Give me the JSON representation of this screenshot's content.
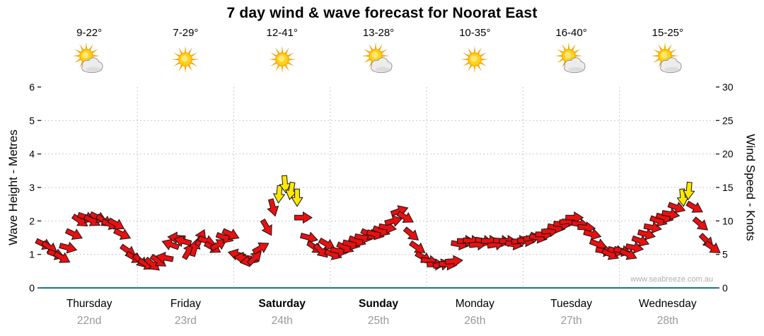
{
  "title": "7 day wind & wave forecast for Noorat East",
  "watermark": "www.seabreeze.com.au",
  "chart_data": {
    "type": "scatter",
    "subtype": "wind-arrow-forecast",
    "title": "7 day wind & wave forecast for Noorat East",
    "ylabel_left": "Wave Height - Metres",
    "ylabel_right": "Wind Speed - Knots",
    "ylim_left": [
      0,
      6
    ],
    "yticks_left": [
      0,
      1,
      2,
      3,
      4,
      5,
      6
    ],
    "ylim_right": [
      0,
      30
    ],
    "yticks_right": [
      0,
      5,
      10,
      15,
      20,
      25,
      30
    ],
    "grid": true,
    "legend": "none",
    "arrow_color": "#e81010",
    "strong_arrow_color": "#ffe800",
    "strong_threshold_knots": 13,
    "axis_line_color": "#0e7c7c",
    "grid_color": "#c9c9c9",
    "days": [
      {
        "name": "Thursday",
        "date": "22nd",
        "temps": "9-22°",
        "icon": "sun-cloud",
        "weekend": false,
        "wind_knots": [
          6.5,
          6,
          5,
          4.5,
          6,
          8,
          10,
          10.5,
          10,
          10.5,
          10,
          9.5,
          9.5,
          8,
          5.5,
          4.5
        ],
        "wind_dir_deg": [
          25,
          35,
          20,
          30,
          15,
          25,
          35,
          20,
          30,
          25,
          35,
          20,
          30,
          25,
          35,
          30
        ]
      },
      {
        "name": "Friday",
        "date": "23rd",
        "temps": "7-29°",
        "icon": "sun",
        "weekend": false,
        "wind_knots": [
          4,
          3.5,
          3.5,
          4,
          4.5,
          6.5,
          7.5,
          7,
          5.5,
          6,
          7.5,
          7,
          6,
          6.5,
          7.5,
          8
        ],
        "wind_dir_deg": [
          45,
          30,
          40,
          35,
          190,
          200,
          185,
          195,
          -60,
          -75,
          -65,
          20,
          30,
          -30,
          20,
          25
        ]
      },
      {
        "name": "Saturday",
        "date": "24th",
        "temps": "12-41°",
        "icon": "sun",
        "weekend": true,
        "wind_knots": [
          5,
          4.5,
          4,
          4.5,
          6,
          9,
          12,
          14,
          15.5,
          14.5,
          13.5,
          10.5,
          7.5,
          6,
          5.5,
          6.5
        ],
        "wind_dir_deg": [
          195,
          185,
          170,
          -45,
          -30,
          60,
          75,
          95,
          85,
          100,
          90,
          0,
          15,
          35,
          45,
          30
        ]
      },
      {
        "name": "Sunday",
        "date": "25th",
        "temps": "13-28°",
        "icon": "sun-cloud",
        "weekend": true,
        "wind_knots": [
          5,
          5.5,
          6,
          6.5,
          7,
          7.5,
          8,
          8,
          8.5,
          9,
          10,
          11.5,
          10.5,
          8,
          6,
          4.5
        ],
        "wind_dir_deg": [
          20,
          10,
          25,
          15,
          20,
          10,
          25,
          15,
          20,
          10,
          -15,
          -20,
          30,
          40,
          35,
          30
        ]
      },
      {
        "name": "Monday",
        "date": "26th",
        "temps": "10-35°",
        "icon": "sun",
        "weekend": false,
        "wind_knots": [
          4,
          3.5,
          3.5,
          3.5,
          4,
          6.5,
          7,
          7,
          6.5,
          7,
          7,
          6.5,
          7,
          7,
          6.5,
          7
        ],
        "wind_dir_deg": [
          10,
          0,
          -10,
          5,
          -5,
          10,
          0,
          5,
          -5,
          10,
          0,
          -10,
          5,
          0,
          10,
          -5
        ]
      },
      {
        "name": "Tuesday",
        "date": "27th",
        "temps": "16-40°",
        "icon": "sun-cloud",
        "weekend": false,
        "wind_knots": [
          7,
          7.5,
          7.5,
          8,
          8.5,
          9,
          9.5,
          10,
          10.5,
          9.5,
          9,
          8,
          6.5,
          5.5,
          5,
          5.5
        ],
        "wind_dir_deg": [
          5,
          -10,
          10,
          0,
          -5,
          10,
          5,
          -10,
          0,
          10,
          5,
          15,
          20,
          10,
          25,
          15
        ]
      },
      {
        "name": "Wednesday",
        "date": "28th",
        "temps": "15-25°",
        "icon": "sun-cloud",
        "weekend": false,
        "wind_knots": [
          5.5,
          5,
          6,
          7,
          8,
          9,
          10,
          10.5,
          11,
          12,
          13.5,
          14.5,
          12,
          9.5,
          7,
          6
        ],
        "wind_dir_deg": [
          15,
          25,
          10,
          20,
          15,
          10,
          20,
          15,
          10,
          20,
          85,
          95,
          30,
          40,
          45,
          35
        ]
      }
    ]
  }
}
